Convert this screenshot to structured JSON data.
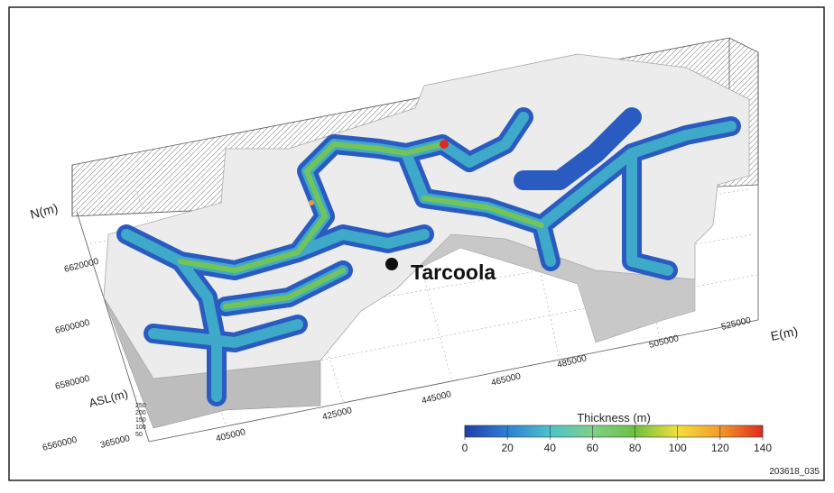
{
  "labels": {
    "place": "Tarcoola",
    "figure_id": "203618_035",
    "n_axis": "N(m)",
    "e_axis": "E(m)",
    "z_axis": "ASL(m)"
  },
  "n_ticks": [
    "6560000",
    "6580000",
    "6600000",
    "6620000"
  ],
  "e_ticks": [
    "365000",
    "405000",
    "425000",
    "445000",
    "465000",
    "485000",
    "505000",
    "525000"
  ],
  "z_ticks": [
    "250",
    "200",
    "150",
    "100",
    "50"
  ],
  "colorbar": {
    "title": "Thickness (m)",
    "ticks": [
      0,
      20,
      40,
      60,
      80,
      100,
      120,
      140
    ],
    "colors": [
      "#1f3fa8",
      "#2f7fd6",
      "#4cc3c9",
      "#7fd08a",
      "#6cc040",
      "#f2e03a",
      "#f39a2a",
      "#e02a20"
    ]
  }
}
